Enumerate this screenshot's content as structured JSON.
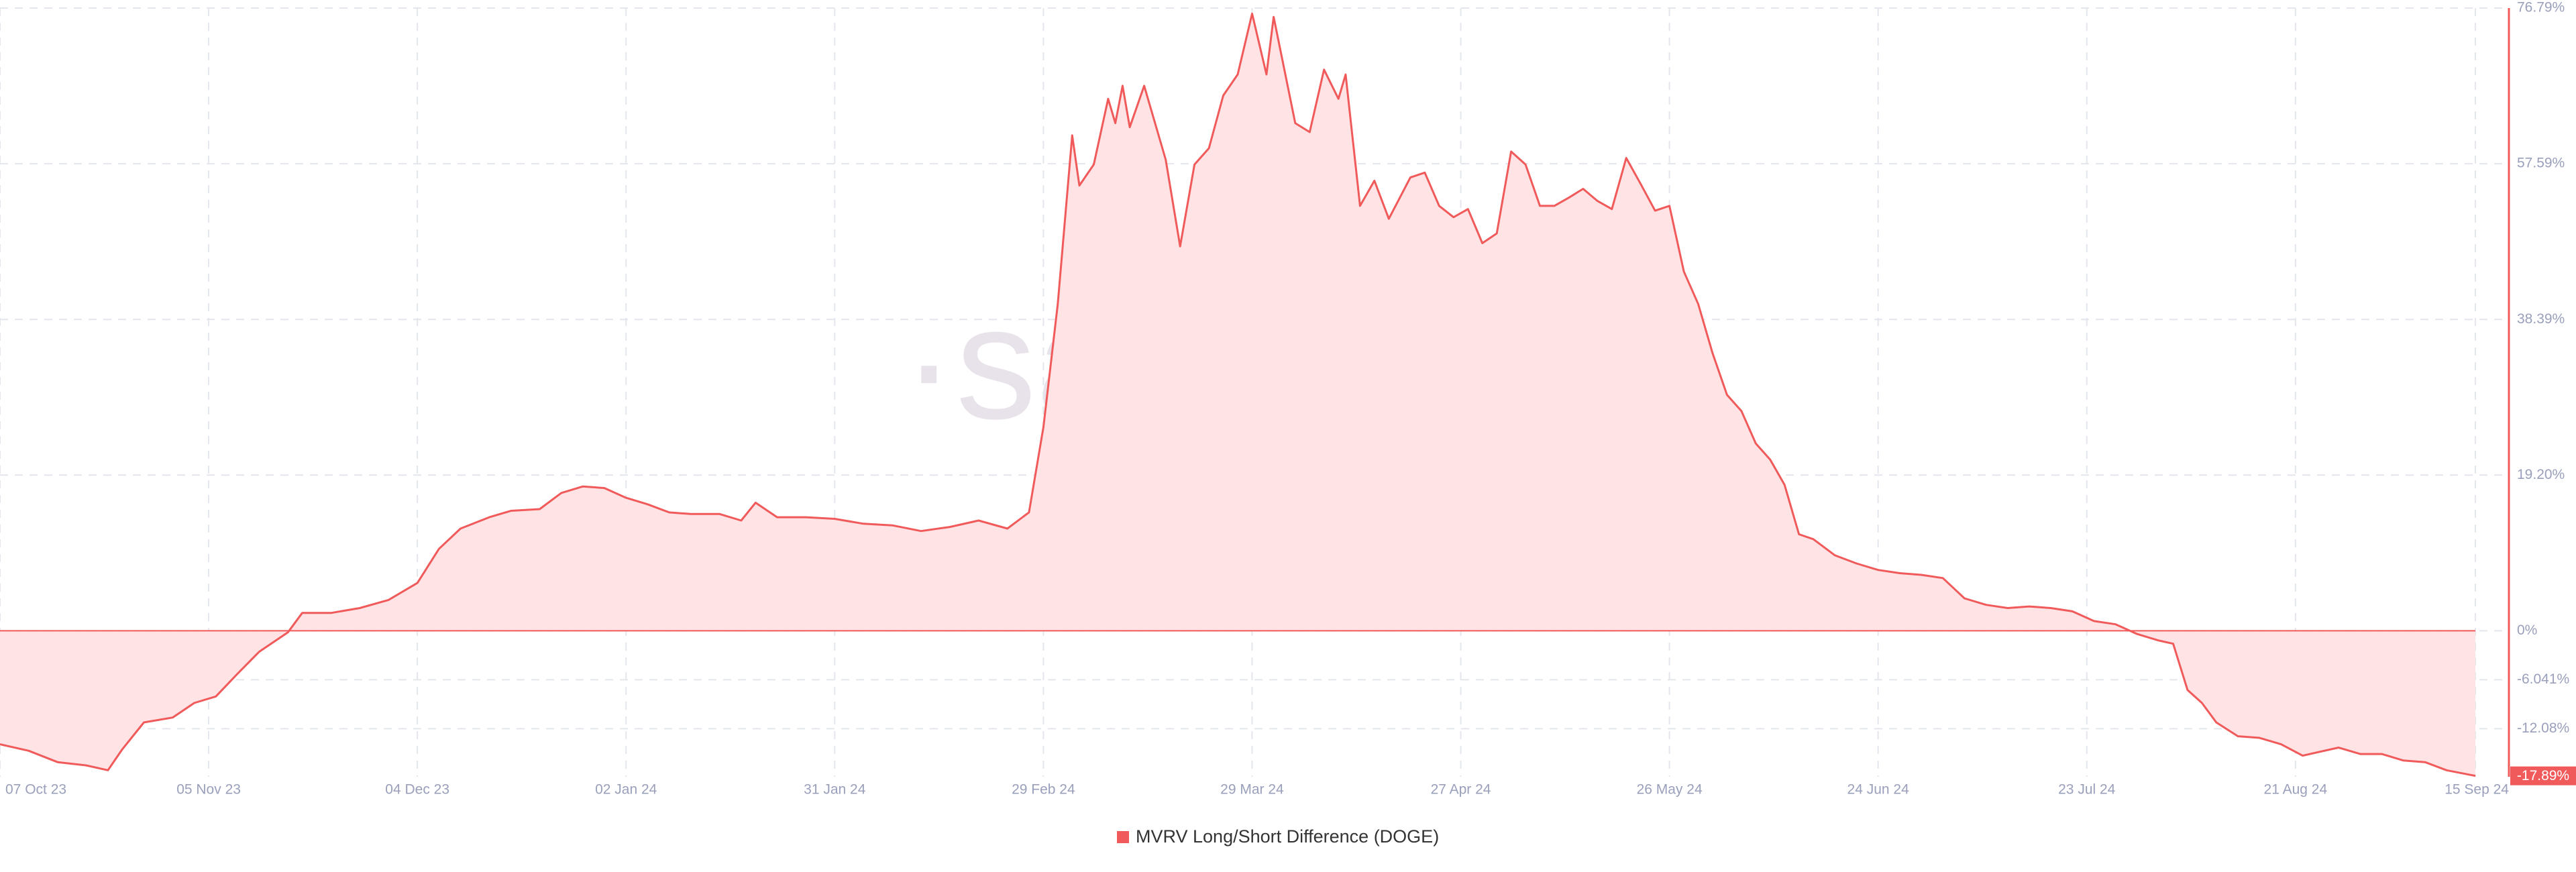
{
  "chart_data": {
    "type": "area",
    "watermark": "·santiment·",
    "xlim": [
      "2023-10-07",
      "2024-09-15"
    ],
    "xticks": [
      {
        "value": "2023-10-07",
        "label": "07 Oct 23"
      },
      {
        "value": "2023-11-05",
        "label": "05 Nov 23"
      },
      {
        "value": "2023-12-04",
        "label": "04 Dec 23"
      },
      {
        "value": "2024-01-02",
        "label": "02 Jan 24"
      },
      {
        "value": "2024-01-31",
        "label": "31 Jan 24"
      },
      {
        "value": "2024-02-29",
        "label": "29 Feb 24"
      },
      {
        "value": "2024-03-29",
        "label": "29 Mar 24"
      },
      {
        "value": "2024-04-27",
        "label": "27 Apr 24"
      },
      {
        "value": "2024-05-26",
        "label": "26 May 24"
      },
      {
        "value": "2024-06-24",
        "label": "24 Jun 24"
      },
      {
        "value": "2024-07-23",
        "label": "23 Jul 24"
      },
      {
        "value": "2024-08-21",
        "label": "21 Aug 24"
      },
      {
        "value": "2024-09-15",
        "label": "15 Sep 24"
      }
    ],
    "ylim": [
      -18,
      76.79
    ],
    "yticks": [
      {
        "value": 76.79,
        "label": "76.79%"
      },
      {
        "value": 57.59,
        "label": "57.59%"
      },
      {
        "value": 38.39,
        "label": "38.39%"
      },
      {
        "value": 19.2,
        "label": "19.20%"
      },
      {
        "value": 0,
        "label": "0%"
      },
      {
        "value": -6.041,
        "label": "-6.041%"
      },
      {
        "value": -12.08,
        "label": "-12.08%"
      },
      {
        "value": -17.89,
        "label": "-17.89%"
      }
    ],
    "grid": true,
    "legend": "bottom",
    "series": [
      {
        "name": "MVRV Long/Short Difference (DOGE)",
        "color": "#f05a5a",
        "fill": "#ffe3e5",
        "x": [
          "2023-10-07",
          "2023-10-11",
          "2023-10-15",
          "2023-10-19",
          "2023-10-22",
          "2023-10-24",
          "2023-10-27",
          "2023-10-31",
          "2023-11-03",
          "2023-11-06",
          "2023-11-09",
          "2023-11-12",
          "2023-11-16",
          "2023-11-18",
          "2023-11-22",
          "2023-11-26",
          "2023-11-30",
          "2023-12-04",
          "2023-12-07",
          "2023-12-10",
          "2023-12-14",
          "2023-12-17",
          "2023-12-21",
          "2023-12-24",
          "2023-12-27",
          "2023-12-30",
          "2024-01-02",
          "2024-01-05",
          "2024-01-08",
          "2024-01-11",
          "2024-01-15",
          "2024-01-18",
          "2024-01-20",
          "2024-01-23",
          "2024-01-27",
          "2024-01-31",
          "2024-02-04",
          "2024-02-08",
          "2024-02-12",
          "2024-02-16",
          "2024-02-20",
          "2024-02-24",
          "2024-02-27",
          "2024-02-29",
          "2024-03-02",
          "2024-03-04",
          "2024-03-05",
          "2024-03-07",
          "2024-03-09",
          "2024-03-10",
          "2024-03-11",
          "2024-03-12",
          "2024-03-14",
          "2024-03-17",
          "2024-03-19",
          "2024-03-21",
          "2024-03-23",
          "2024-03-25",
          "2024-03-27",
          "2024-03-29",
          "2024-03-31",
          "2024-04-01",
          "2024-04-04",
          "2024-04-06",
          "2024-04-08",
          "2024-04-10",
          "2024-04-11",
          "2024-04-13",
          "2024-04-15",
          "2024-04-17",
          "2024-04-20",
          "2024-04-22",
          "2024-04-24",
          "2024-04-26",
          "2024-04-28",
          "2024-04-30",
          "2024-05-02",
          "2024-05-04",
          "2024-05-06",
          "2024-05-08",
          "2024-05-10",
          "2024-05-12",
          "2024-05-14",
          "2024-05-16",
          "2024-05-18",
          "2024-05-20",
          "2024-05-22",
          "2024-05-24",
          "2024-05-26",
          "2024-05-28",
          "2024-05-30",
          "2024-06-01",
          "2024-06-03",
          "2024-06-05",
          "2024-06-07",
          "2024-06-09",
          "2024-06-11",
          "2024-06-13",
          "2024-06-15",
          "2024-06-18",
          "2024-06-21",
          "2024-06-24",
          "2024-06-27",
          "2024-06-30",
          "2024-07-03",
          "2024-07-06",
          "2024-07-09",
          "2024-07-12",
          "2024-07-15",
          "2024-07-18",
          "2024-07-21",
          "2024-07-24",
          "2024-07-27",
          "2024-07-30",
          "2024-08-02",
          "2024-08-04",
          "2024-08-06",
          "2024-08-08",
          "2024-08-10",
          "2024-08-13",
          "2024-08-16",
          "2024-08-19",
          "2024-08-22",
          "2024-08-24",
          "2024-08-27",
          "2024-08-30",
          "2024-09-02",
          "2024-09-05",
          "2024-09-08",
          "2024-09-11",
          "2024-09-15"
        ],
        "values": [
          -14.0,
          -14.8,
          -16.2,
          -16.6,
          -17.2,
          -14.6,
          -11.3,
          -10.7,
          -8.9,
          -8.1,
          -5.3,
          -2.6,
          -0.2,
          2.2,
          2.2,
          2.8,
          3.8,
          5.9,
          10.1,
          12.6,
          14.0,
          14.8,
          15.0,
          17.0,
          17.8,
          17.6,
          16.4,
          15.6,
          14.6,
          14.4,
          14.4,
          13.6,
          15.8,
          14.0,
          14.0,
          13.8,
          13.2,
          13.0,
          12.3,
          12.8,
          13.6,
          12.6,
          14.6,
          25.1,
          40.3,
          61.1,
          54.9,
          57.5,
          65.6,
          62.6,
          67.2,
          62.1,
          67.2,
          58.1,
          47.4,
          57.5,
          59.5,
          66.0,
          68.6,
          76.1,
          68.6,
          75.7,
          62.6,
          61.5,
          69.2,
          65.6,
          68.6,
          52.4,
          55.5,
          50.8,
          55.9,
          56.5,
          52.4,
          51.0,
          52.0,
          47.8,
          49.0,
          59.1,
          57.5,
          52.4,
          52.4,
          53.4,
          54.5,
          53.0,
          52.0,
          58.3,
          55.1,
          51.8,
          52.4,
          44.3,
          40.3,
          34.2,
          29.1,
          27.1,
          23.1,
          21.1,
          18.0,
          11.9,
          11.3,
          9.3,
          8.3,
          7.5,
          7.1,
          6.9,
          6.5,
          4.0,
          3.2,
          2.8,
          3.0,
          2.8,
          2.4,
          1.2,
          0.8,
          -0.4,
          -1.2,
          -1.6,
          -7.3,
          -8.9,
          -11.3,
          -13.0,
          -13.2,
          -14.0,
          -15.4,
          -15.0,
          -14.4,
          -15.2,
          -15.2,
          -16.0,
          -16.2,
          -17.2,
          -17.89
        ]
      }
    ]
  }
}
